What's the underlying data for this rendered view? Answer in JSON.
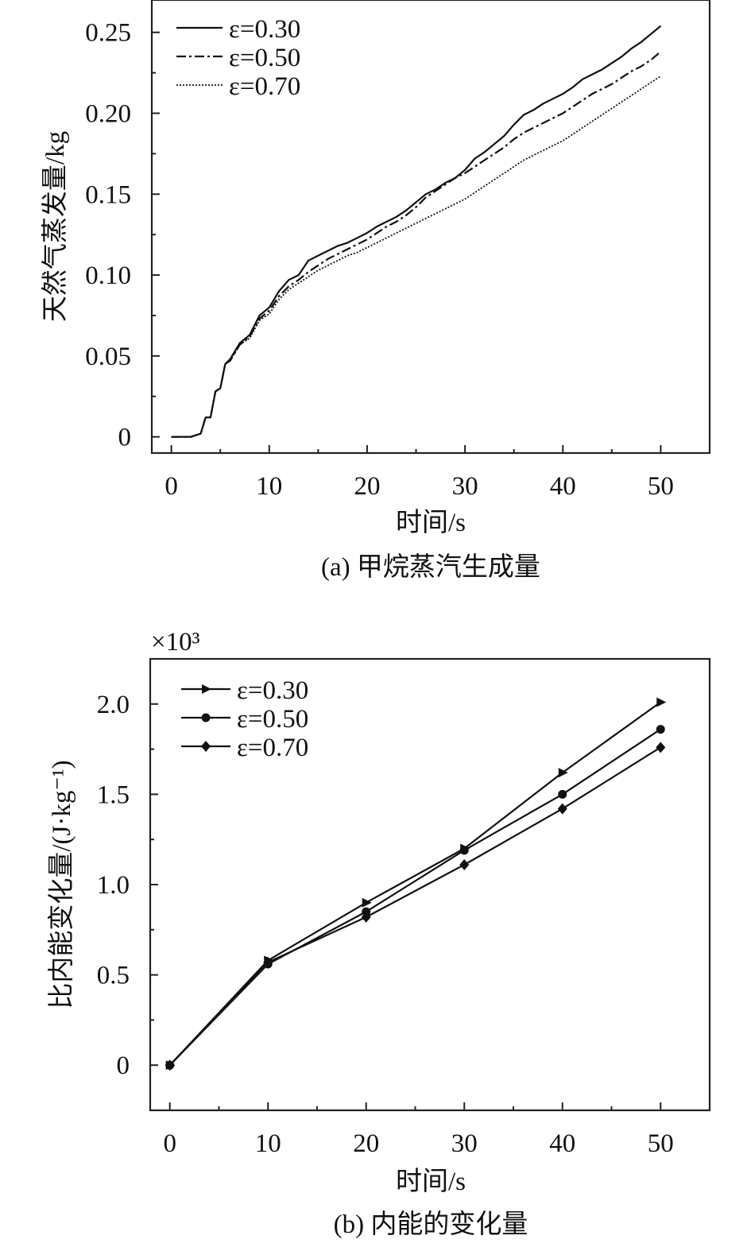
{
  "chart_data": [
    {
      "type": "line",
      "caption": "(a) 甲烷蒸汽生成量",
      "xlabel": "时间/s",
      "ylabel": "天然气蒸发量/kg",
      "xlim": [
        -2,
        55
      ],
      "ylim": [
        -0.01,
        0.27
      ],
      "xticks": [
        "0",
        "10",
        "20",
        "30",
        "40",
        "50"
      ],
      "yticks": [
        "0",
        "0.05",
        "0.10",
        "0.15",
        "0.20",
        "0.25"
      ],
      "legend_position": "top-left",
      "series": [
        {
          "name": "ε=0.30",
          "style": "solid",
          "x": [
            0,
            1,
            2,
            3,
            3.5,
            4,
            4.5,
            5,
            5.5,
            6,
            7,
            8,
            9,
            10,
            11,
            12,
            13,
            14,
            15,
            16,
            17,
            18,
            19,
            20,
            21,
            22,
            23,
            24,
            25,
            26,
            27,
            28,
            29,
            30,
            31,
            32,
            33,
            34,
            35,
            36,
            37,
            38,
            39,
            40,
            41,
            42,
            43,
            44,
            45,
            46,
            47,
            48,
            49,
            50
          ],
          "y": [
            0,
            0,
            0,
            0.002,
            0.012,
            0.012,
            0.028,
            0.03,
            0.045,
            0.048,
            0.058,
            0.063,
            0.075,
            0.08,
            0.09,
            0.097,
            0.1,
            0.109,
            0.112,
            0.115,
            0.118,
            0.12,
            0.123,
            0.126,
            0.13,
            0.133,
            0.136,
            0.14,
            0.145,
            0.15,
            0.153,
            0.157,
            0.16,
            0.165,
            0.172,
            0.176,
            0.181,
            0.186,
            0.193,
            0.199,
            0.202,
            0.206,
            0.209,
            0.212,
            0.216,
            0.221,
            0.224,
            0.227,
            0.231,
            0.235,
            0.24,
            0.244,
            0.249,
            0.254
          ]
        },
        {
          "name": "ε=0.50",
          "style": "dashdot",
          "x": [
            0,
            1,
            2,
            3,
            3.5,
            4,
            4.5,
            5,
            5.5,
            6,
            7,
            8,
            9,
            10,
            11,
            12,
            13,
            14,
            15,
            16,
            17,
            18,
            19,
            20,
            21,
            22,
            23,
            24,
            25,
            26,
            27,
            28,
            29,
            30,
            31,
            32,
            33,
            34,
            35,
            36,
            37,
            38,
            39,
            40,
            41,
            42,
            43,
            44,
            45,
            46,
            47,
            48,
            49,
            50
          ],
          "y": [
            0,
            0,
            0,
            0.002,
            0.012,
            0.012,
            0.028,
            0.03,
            0.045,
            0.047,
            0.057,
            0.062,
            0.073,
            0.078,
            0.087,
            0.093,
            0.097,
            0.102,
            0.106,
            0.11,
            0.113,
            0.116,
            0.119,
            0.122,
            0.126,
            0.13,
            0.133,
            0.137,
            0.142,
            0.148,
            0.152,
            0.156,
            0.16,
            0.163,
            0.167,
            0.171,
            0.175,
            0.179,
            0.184,
            0.188,
            0.191,
            0.194,
            0.197,
            0.2,
            0.204,
            0.208,
            0.212,
            0.215,
            0.218,
            0.222,
            0.226,
            0.229,
            0.233,
            0.238
          ]
        },
        {
          "name": "ε=0.70",
          "style": "dotted",
          "x": [
            0,
            1,
            2,
            3,
            3.5,
            4,
            4.5,
            5,
            5.5,
            6,
            7,
            8,
            9,
            10,
            11,
            12,
            13,
            14,
            15,
            16,
            17,
            18,
            19,
            20,
            21,
            22,
            23,
            24,
            25,
            26,
            27,
            28,
            29,
            30,
            31,
            32,
            33,
            34,
            35,
            36,
            37,
            38,
            39,
            40,
            41,
            42,
            43,
            44,
            45,
            46,
            47,
            48,
            49,
            50
          ],
          "y": [
            0,
            0,
            0,
            0.002,
            0.012,
            0.012,
            0.028,
            0.03,
            0.045,
            0.047,
            0.057,
            0.061,
            0.072,
            0.076,
            0.085,
            0.091,
            0.095,
            0.099,
            0.103,
            0.106,
            0.109,
            0.112,
            0.114,
            0.117,
            0.12,
            0.123,
            0.126,
            0.129,
            0.132,
            0.135,
            0.138,
            0.141,
            0.144,
            0.147,
            0.151,
            0.155,
            0.159,
            0.163,
            0.167,
            0.171,
            0.174,
            0.177,
            0.18,
            0.183,
            0.187,
            0.191,
            0.195,
            0.199,
            0.203,
            0.207,
            0.211,
            0.215,
            0.219,
            0.223
          ]
        }
      ]
    },
    {
      "type": "line",
      "caption": "(b) 内能的变化量",
      "xlabel": "时间/s",
      "ylabel": "比内能变化量/(J·kg⁻¹)",
      "multiplier": "×10³",
      "xlim": [
        -2,
        55
      ],
      "ylim": [
        -0.25,
        2.25
      ],
      "xticks": [
        "0",
        "10",
        "20",
        "30",
        "40",
        "50"
      ],
      "yticks": [
        "0",
        "0.5",
        "1.0",
        "1.5",
        "2.0"
      ],
      "legend_position": "top-left",
      "series": [
        {
          "name": "ε=0.30",
          "marker": "triangle-right",
          "x": [
            0,
            10,
            20,
            30,
            40,
            50
          ],
          "y": [
            0,
            0.58,
            0.9,
            1.2,
            1.62,
            2.01
          ]
        },
        {
          "name": "ε=0.50",
          "marker": "circle",
          "x": [
            0,
            10,
            20,
            30,
            40,
            50
          ],
          "y": [
            0,
            0.56,
            0.85,
            1.19,
            1.5,
            1.86
          ]
        },
        {
          "name": "ε=0.70",
          "marker": "diamond",
          "x": [
            0,
            10,
            20,
            30,
            40,
            50
          ],
          "y": [
            0,
            0.57,
            0.82,
            1.11,
            1.42,
            1.76
          ]
        }
      ]
    }
  ]
}
